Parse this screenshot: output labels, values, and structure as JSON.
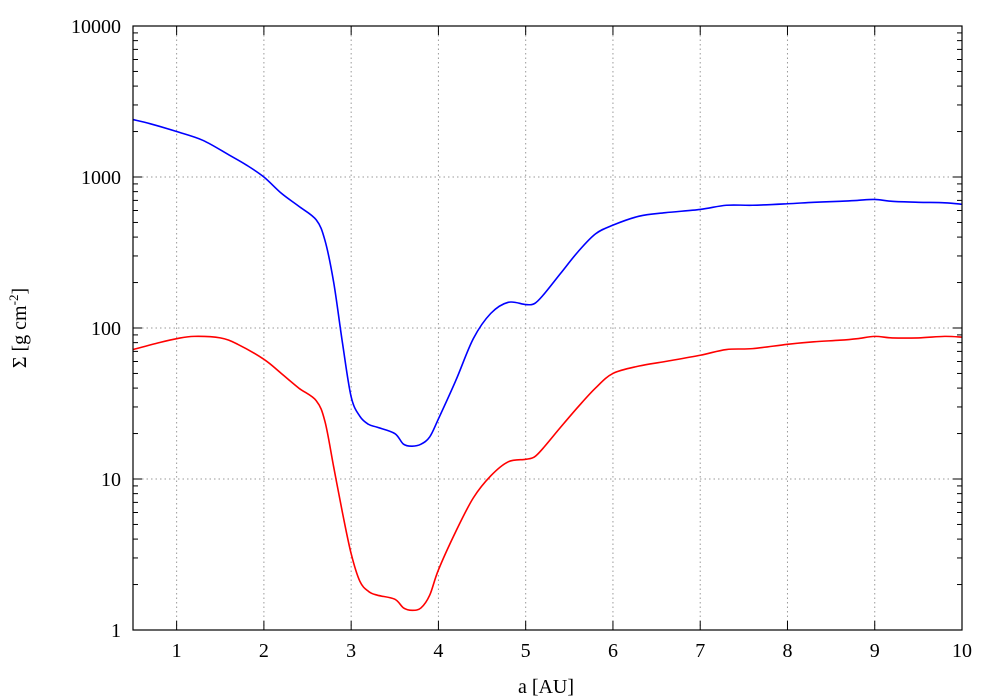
{
  "chart_data": {
    "type": "line",
    "title": "",
    "xlabel": "a [AU]",
    "ylabel": {
      "prefix": "Σ [g cm",
      "exponent": "-2",
      "suffix": "]"
    },
    "xlim": [
      0.5,
      10
    ],
    "ylim": [
      1,
      10000
    ],
    "yscale": "log",
    "grid": true,
    "x_ticks": [
      1,
      2,
      3,
      4,
      5,
      6,
      7,
      8,
      9,
      10
    ],
    "x_tick_labels": [
      "1",
      "2",
      "3",
      "4",
      "5",
      "6",
      "7",
      "8",
      "9",
      "10"
    ],
    "y_ticks": [
      1,
      10,
      100,
      1000,
      10000
    ],
    "y_tick_labels": [
      "1",
      "10",
      "100",
      "1000",
      "10000"
    ],
    "series": [
      {
        "color": "#0000ff",
        "x": [
          0.5,
          0.7,
          1.0,
          1.3,
          1.6,
          1.8,
          2.0,
          2.2,
          2.4,
          2.6,
          2.7,
          2.8,
          2.9,
          3.0,
          3.1,
          3.2,
          3.3,
          3.5,
          3.6,
          3.7,
          3.8,
          3.9,
          4.0,
          4.2,
          4.4,
          4.6,
          4.8,
          5.0,
          5.1,
          5.2,
          5.4,
          5.6,
          5.8,
          6.0,
          6.3,
          6.6,
          7.0,
          7.3,
          7.6,
          8.0,
          8.3,
          8.6,
          8.8,
          9.0,
          9.2,
          9.5,
          9.8,
          10.0
        ],
        "y": [
          2400,
          2250,
          2000,
          1750,
          1400,
          1200,
          1000,
          780,
          640,
          520,
          380,
          200,
          80,
          35,
          26,
          23,
          22,
          20,
          17,
          16.5,
          17,
          19,
          25,
          45,
          85,
          125,
          148,
          143,
          145,
          165,
          230,
          320,
          420,
          480,
          550,
          580,
          610,
          650,
          650,
          665,
          680,
          690,
          700,
          710,
          690,
          680,
          675,
          660
        ]
      },
      {
        "color": "#ff0000",
        "x": [
          0.5,
          0.8,
          1.0,
          1.2,
          1.5,
          1.7,
          2.0,
          2.2,
          2.4,
          2.6,
          2.7,
          2.8,
          2.9,
          3.0,
          3.1,
          3.2,
          3.3,
          3.5,
          3.6,
          3.7,
          3.8,
          3.9,
          4.0,
          4.2,
          4.4,
          4.6,
          4.8,
          5.0,
          5.1,
          5.2,
          5.4,
          5.6,
          5.8,
          6.0,
          6.3,
          6.6,
          7.0,
          7.3,
          7.6,
          8.0,
          8.3,
          8.6,
          8.8,
          9.0,
          9.2,
          9.5,
          9.8,
          10.0
        ],
        "y": [
          72,
          80,
          85,
          88,
          86,
          78,
          62,
          50,
          40,
          33,
          24,
          12,
          6,
          3.2,
          2.1,
          1.8,
          1.7,
          1.6,
          1.4,
          1.35,
          1.4,
          1.7,
          2.5,
          4.5,
          7.5,
          10.5,
          13,
          13.5,
          14,
          16,
          22,
          30,
          40,
          50,
          56,
          60,
          66,
          72,
          73,
          78,
          81,
          83,
          85,
          88,
          86,
          86,
          88,
          87
        ]
      }
    ]
  }
}
